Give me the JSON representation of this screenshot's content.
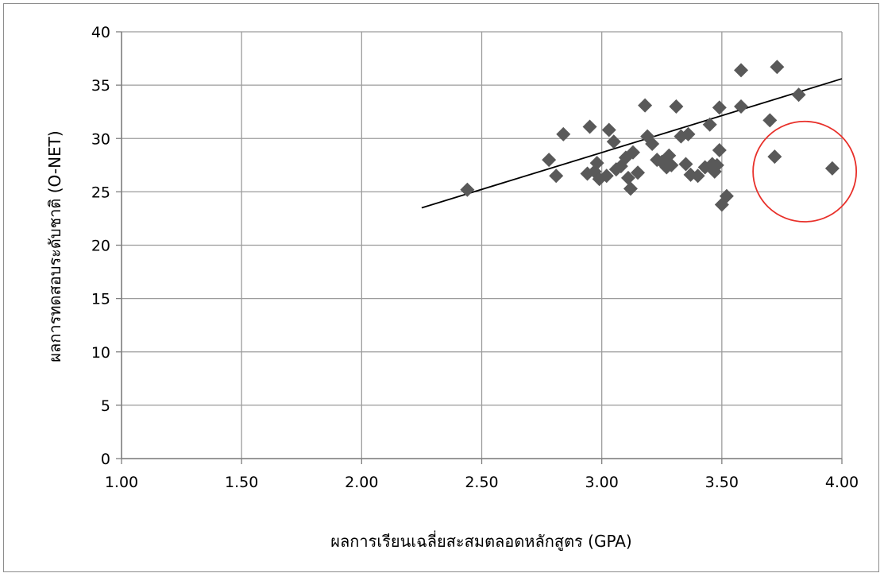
{
  "chart_data": {
    "type": "scatter",
    "title": "",
    "xlabel": "ผลการเรียนเฉลี่ยสะสมตลอดหลักสูตร (GPA)",
    "ylabel": "ผลการทดสอบระดับชาติ (O-NET)",
    "xlim": [
      1.0,
      4.0
    ],
    "ylim": [
      0,
      40
    ],
    "x_ticks": [
      "1.00",
      "1.50",
      "2.00",
      "2.50",
      "3.00",
      "3.50",
      "4.00"
    ],
    "y_ticks": [
      "0",
      "5",
      "10",
      "15",
      "20",
      "25",
      "30",
      "35",
      "40"
    ],
    "grid": true,
    "marker": "diamond",
    "marker_color": "#595959",
    "points": [
      [
        2.44,
        25.2
      ],
      [
        2.78,
        28.0
      ],
      [
        2.81,
        26.5
      ],
      [
        2.84,
        30.4
      ],
      [
        2.94,
        26.7
      ],
      [
        2.95,
        31.1
      ],
      [
        2.97,
        26.9
      ],
      [
        2.98,
        27.7
      ],
      [
        2.99,
        26.2
      ],
      [
        3.02,
        26.5
      ],
      [
        3.03,
        30.8
      ],
      [
        3.05,
        29.7
      ],
      [
        3.06,
        27.1
      ],
      [
        3.08,
        27.4
      ],
      [
        3.1,
        28.2
      ],
      [
        3.11,
        26.3
      ],
      [
        3.12,
        25.3
      ],
      [
        3.13,
        28.7
      ],
      [
        3.15,
        26.8
      ],
      [
        3.18,
        33.1
      ],
      [
        3.19,
        30.2
      ],
      [
        3.21,
        29.5
      ],
      [
        3.23,
        28.0
      ],
      [
        3.25,
        27.8
      ],
      [
        3.27,
        27.3
      ],
      [
        3.28,
        28.4
      ],
      [
        3.29,
        27.5
      ],
      [
        3.31,
        33.0
      ],
      [
        3.33,
        30.2
      ],
      [
        3.35,
        27.6
      ],
      [
        3.36,
        30.4
      ],
      [
        3.37,
        26.6
      ],
      [
        3.4,
        26.5
      ],
      [
        3.43,
        27.3
      ],
      [
        3.45,
        31.3
      ],
      [
        3.46,
        27.6
      ],
      [
        3.47,
        26.9
      ],
      [
        3.48,
        27.5
      ],
      [
        3.49,
        32.9
      ],
      [
        3.49,
        28.9
      ],
      [
        3.5,
        23.8
      ],
      [
        3.52,
        24.6
      ],
      [
        3.58,
        33.0
      ],
      [
        3.58,
        36.4
      ],
      [
        3.7,
        31.7
      ],
      [
        3.72,
        28.3
      ],
      [
        3.73,
        36.7
      ],
      [
        3.82,
        34.1
      ],
      [
        3.96,
        27.2
      ]
    ],
    "trendline": {
      "type": "linear",
      "x": [
        2.25,
        4.0
      ],
      "y": [
        23.5,
        35.6
      ],
      "color": "#000000"
    },
    "annotation": {
      "shape": "circle",
      "x_range": [
        3.63,
        4.06
      ],
      "y_range": [
        22.2,
        31.6
      ],
      "color": "#e8302a"
    },
    "colors": {
      "grid": "#9c9c9c",
      "axis": "#7f7f7f",
      "background": "#ffffff"
    }
  }
}
